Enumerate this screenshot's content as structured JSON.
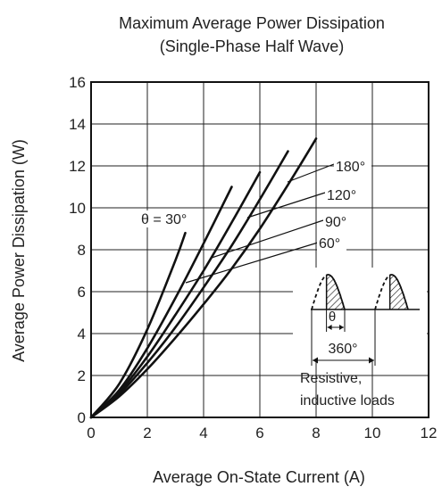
{
  "chart_data": {
    "type": "line",
    "title": "Maximum Average Power Dissipation",
    "subtitle": "(Single-Phase Half Wave)",
    "xlabel": "Average On-State Current  (A)",
    "ylabel": "Average Power Dissipation  (W)",
    "xlim": [
      0,
      12
    ],
    "ylim": [
      0,
      16
    ],
    "xticks": [
      "0",
      "2",
      "4",
      "6",
      "8",
      "10",
      "12"
    ],
    "yticks": [
      "0",
      "2",
      "4",
      "6",
      "8",
      "10",
      "12",
      "14",
      "16"
    ],
    "grid": true,
    "colors": {
      "line": "#111111",
      "grid": "#222222",
      "hatch": "#111111"
    },
    "series": [
      {
        "name": "θ = 30°",
        "x": [
          0,
          1,
          2,
          3,
          3.35
        ],
        "y": [
          0,
          1.6,
          4.2,
          7.5,
          8.8
        ]
      },
      {
        "name": "60°",
        "x": [
          0,
          1,
          2,
          3,
          4,
          5
        ],
        "y": [
          0,
          1.3,
          3.3,
          5.7,
          8.3,
          11.0
        ]
      },
      {
        "name": "90°",
        "x": [
          0,
          1,
          2,
          3,
          4,
          5,
          6
        ],
        "y": [
          0,
          1.2,
          2.9,
          4.9,
          7.0,
          9.3,
          11.7
        ]
      },
      {
        "name": "120°",
        "x": [
          0,
          1,
          2,
          3,
          4,
          5,
          6,
          7
        ],
        "y": [
          0,
          1.1,
          2.6,
          4.3,
          6.2,
          8.2,
          10.4,
          12.7
        ]
      },
      {
        "name": "180°",
        "x": [
          0,
          1,
          2,
          3,
          4,
          5,
          6,
          7,
          8
        ],
        "y": [
          0,
          1.0,
          2.3,
          3.8,
          5.4,
          7.1,
          9.0,
          11.1,
          13.3
        ]
      }
    ],
    "annotations": {
      "conduction_angle": "θ",
      "period": "360°",
      "load_note_1": "Resistive,",
      "load_note_2": "inductive loads"
    }
  }
}
